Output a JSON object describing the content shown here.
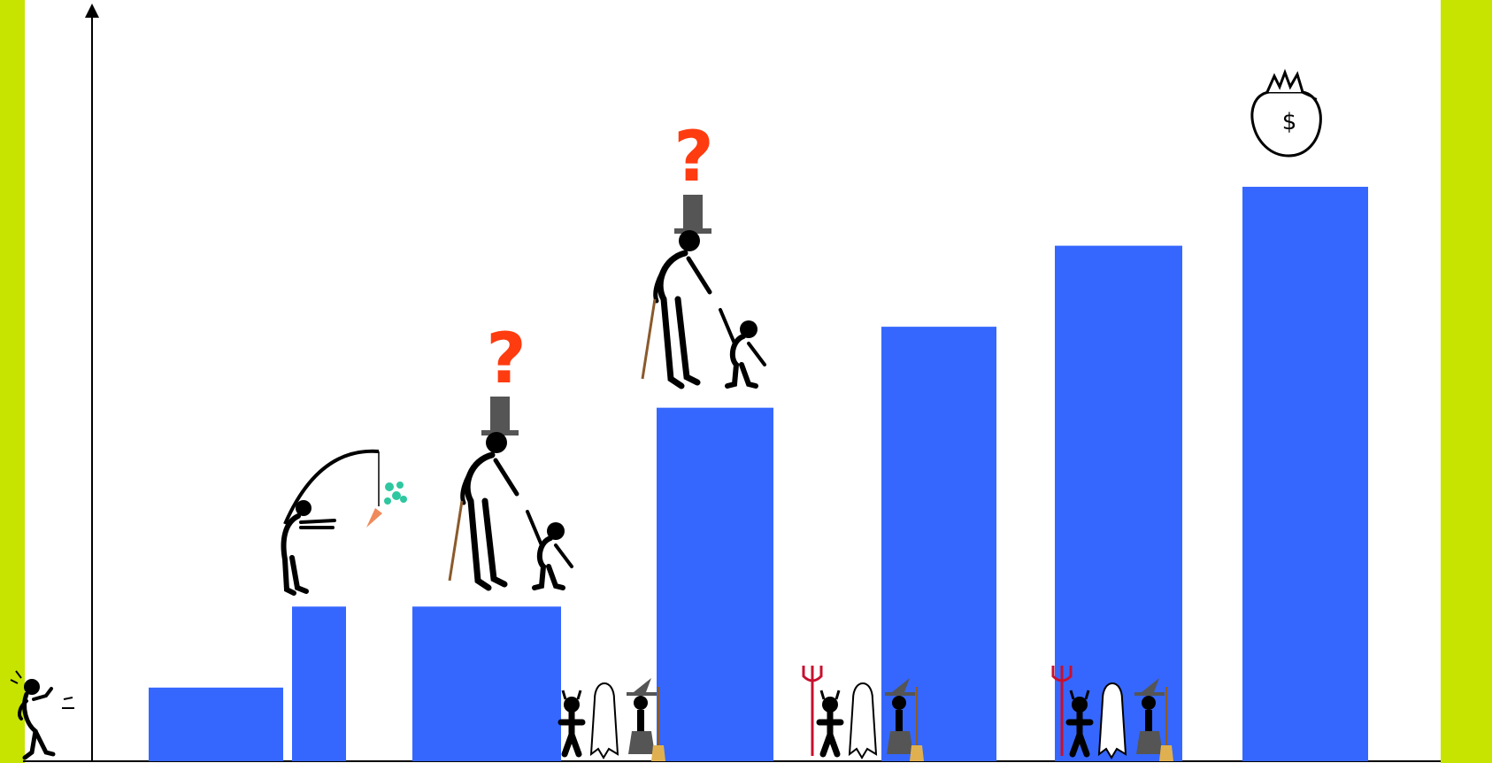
{
  "colors": {
    "background": "#ffffff",
    "side_stripe": "#c6e400",
    "bar": "#3567ff",
    "axis": "#000000",
    "question_mark": "#ff3b10",
    "figure": "#000000",
    "hat": "#555555",
    "cane": "#8a5a2b",
    "carrot": "#f08a5a",
    "carrot_leaves": "#2ec7a0",
    "pitchfork": "#c8102e"
  },
  "annotations": {
    "question_mark_1": "?",
    "question_mark_2": "?",
    "money_symbol": "$"
  },
  "icons": [
    "scared-person-icon",
    "carrot-on-stick-icon",
    "top-hat-man-with-child-icon",
    "devil-icon",
    "ghost-icon",
    "witch-icon",
    "money-bag-icon"
  ],
  "chart_data": {
    "type": "bar",
    "title": "",
    "xlabel": "",
    "ylabel": "",
    "grid": false,
    "legend": "none",
    "ylim": [
      0,
      100
    ],
    "values": [
      10,
      21,
      21,
      48,
      59,
      70,
      78
    ]
  }
}
